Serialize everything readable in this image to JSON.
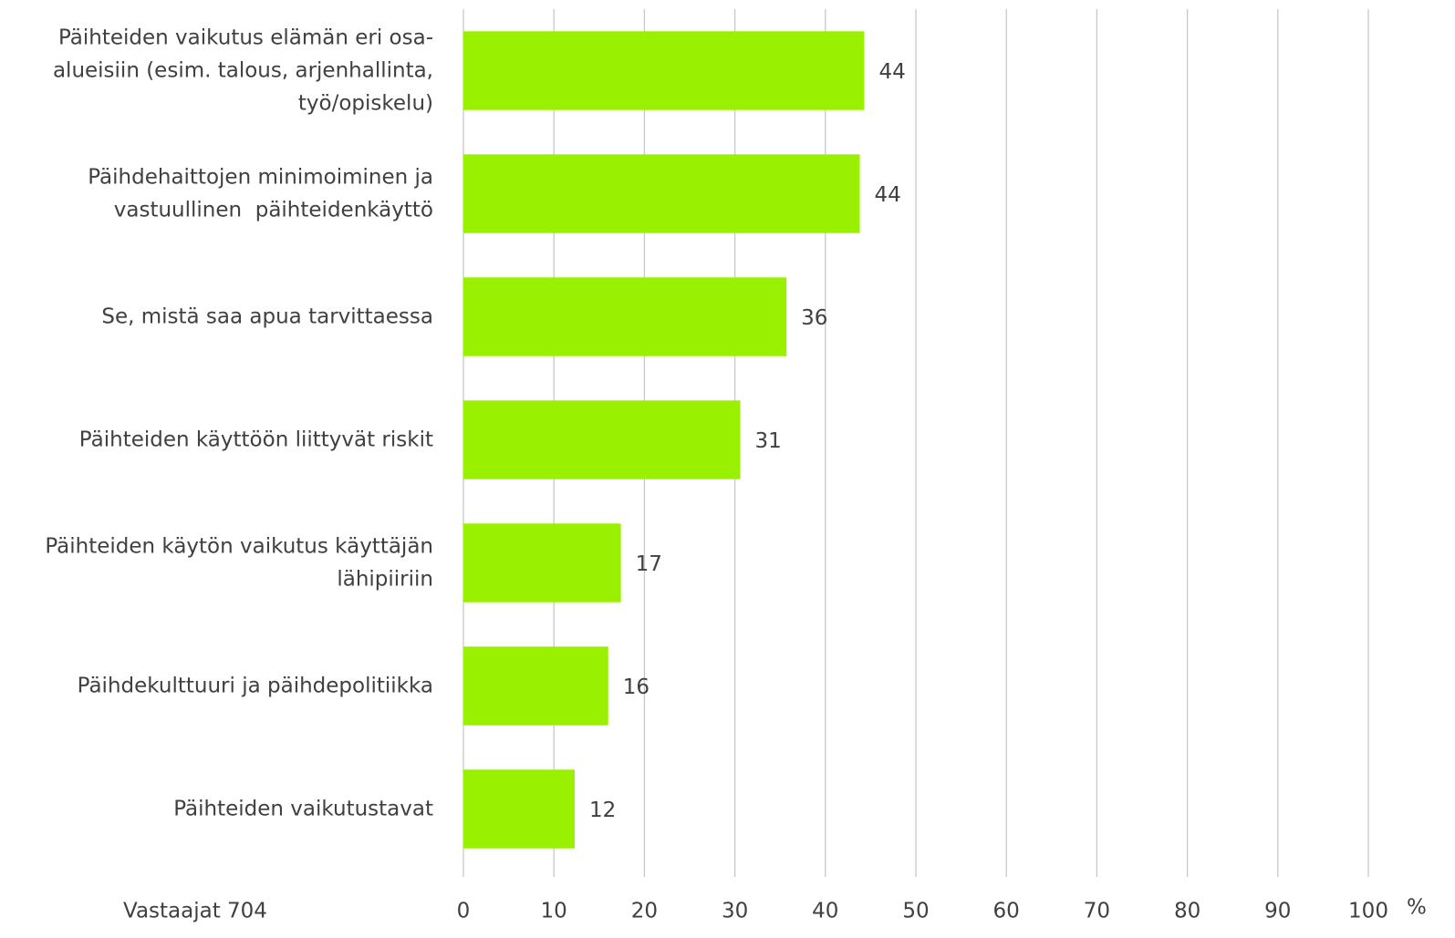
{
  "chart_data": {
    "type": "bar",
    "orientation": "horizontal",
    "categories": [
      "Päihteiden vaikutus elämän eri osa-\nalueisiin (esim. talous, arjenhallinta,\ntyö/opiskelu)",
      "Päihdehaittojen minimoiminen ja\nvastuullinen  päihteidenkäyttö",
      "Se, mistä saa apua tarvittaessa",
      "Päihteiden käyttöön liittyvät riskit",
      "Päihteiden käytön vaikutus käyttäjän\nlähipiiriin",
      "Päihdekulttuuri ja päihdepolitiikka",
      "Päihteiden vaikutustavat"
    ],
    "values": [
      44.3,
      43.8,
      35.7,
      30.6,
      17.4,
      16.0,
      12.3
    ],
    "value_labels": [
      "44",
      "44",
      "36",
      "31",
      "17",
      "16",
      "12"
    ],
    "color": "#99f000",
    "xlim": [
      0,
      100
    ],
    "xticks": [
      0,
      10,
      20,
      30,
      40,
      50,
      60,
      70,
      80,
      90,
      100
    ],
    "grid": true,
    "x_unit_label": "%",
    "note": "Vastaajat 704"
  }
}
